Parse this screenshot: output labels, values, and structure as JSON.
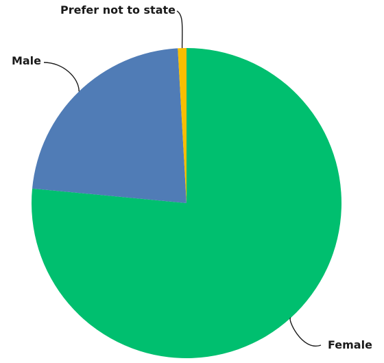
{
  "chart_data": {
    "type": "pie",
    "title": "",
    "start_angle_deg": 0,
    "direction": "clockwise",
    "legend": "none",
    "slices": [
      {
        "label": "Female",
        "value": 76.5,
        "color": "#00BF6F"
      },
      {
        "label": "Male",
        "value": 22.6,
        "color": "#507CB6"
      },
      {
        "label": "Prefer not to state",
        "value": 0.9,
        "color": "#F9BE00"
      }
    ]
  }
}
